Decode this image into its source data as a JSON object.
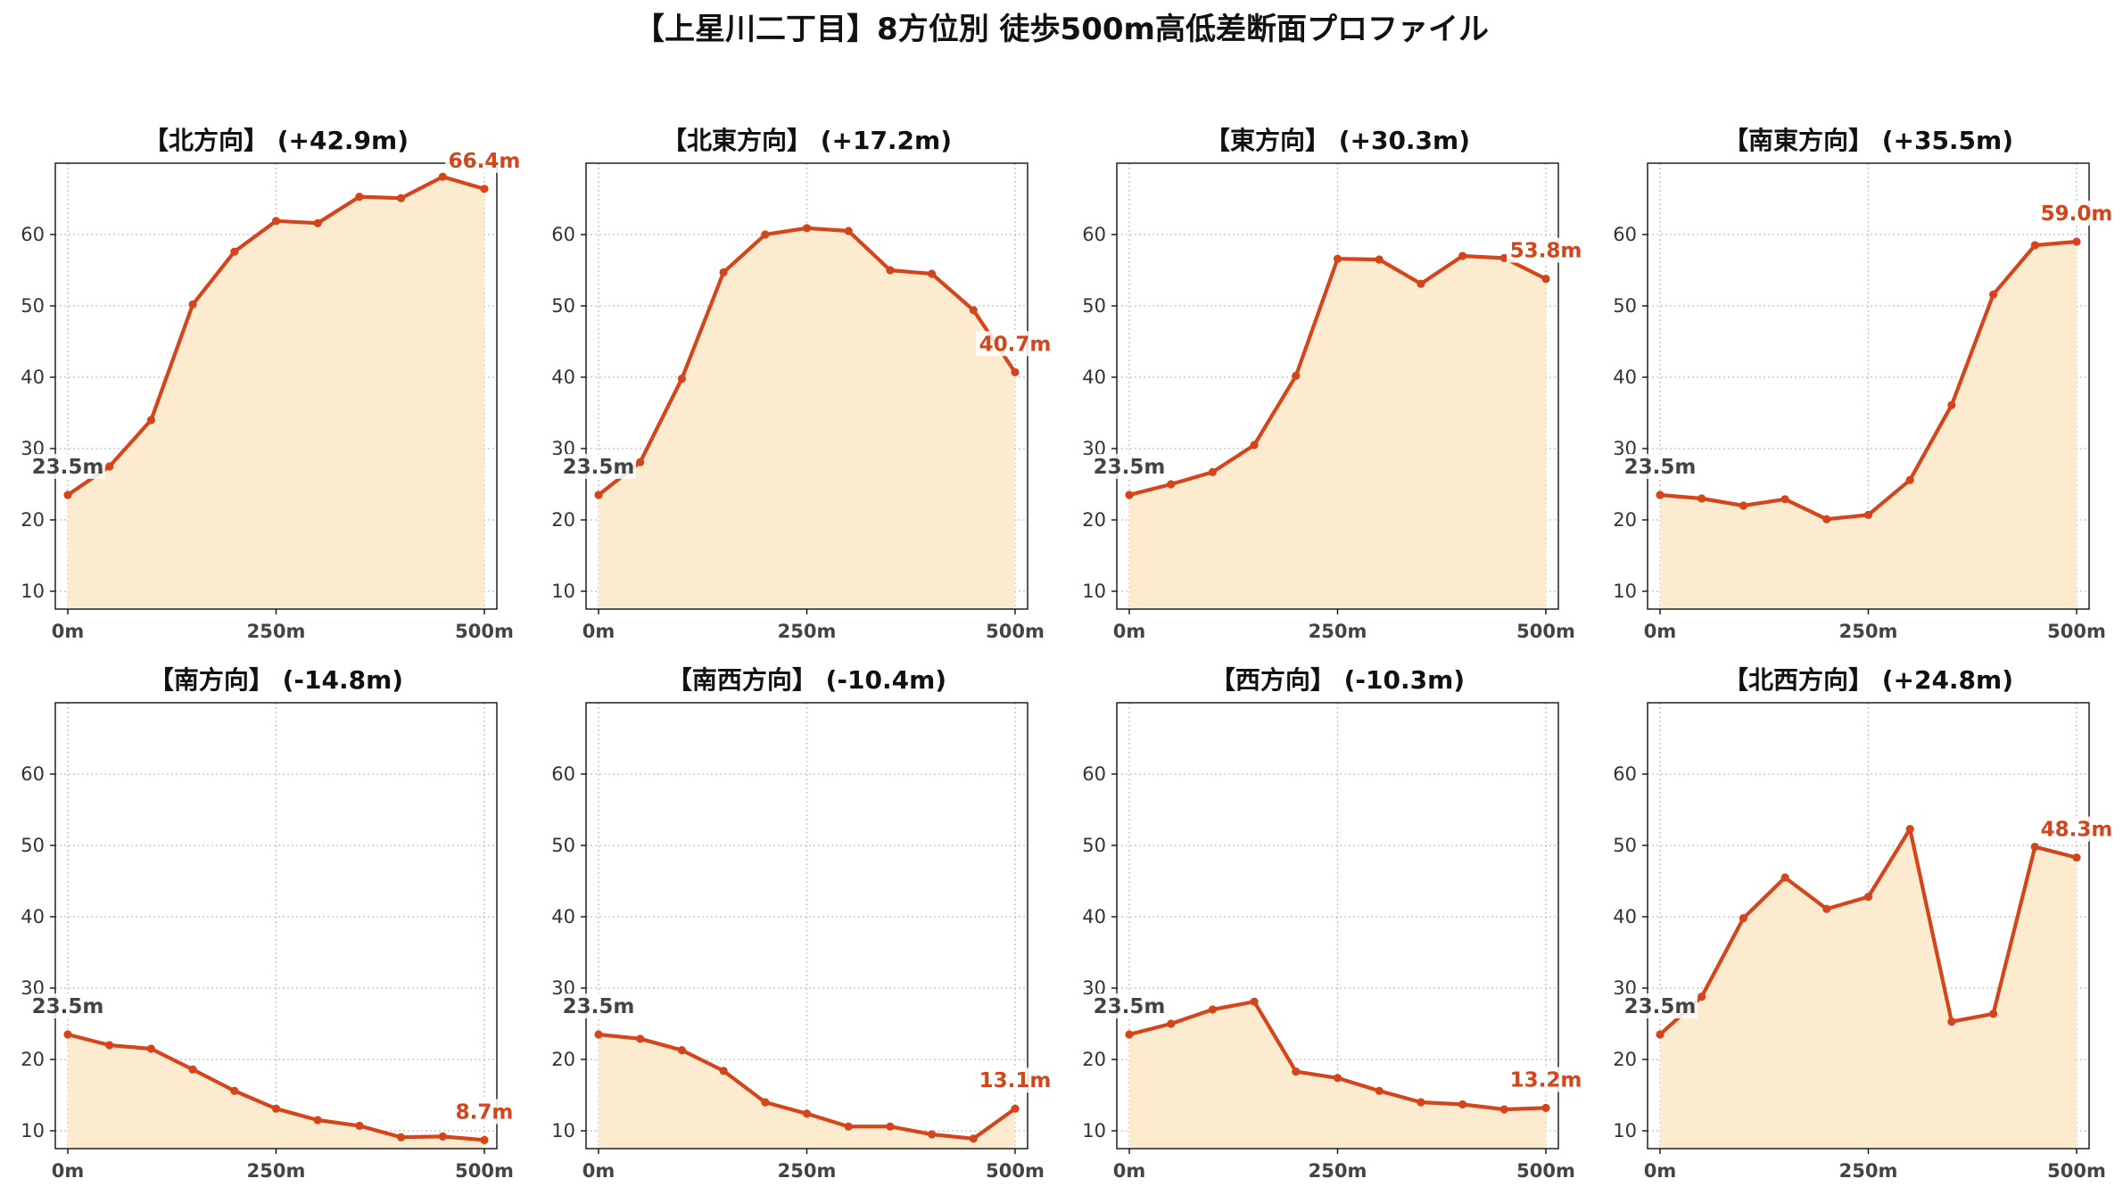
{
  "title": "【上星川二丁目】8方位別 徒歩500m高低差断面プロファイル",
  "colors": {
    "line": "#d4451b",
    "area": "#fdebd0",
    "start_label": "#444444",
    "end_label": "#d4451b"
  },
  "chart_data": {
    "type": "area",
    "shared_x": [
      0,
      50,
      100,
      150,
      200,
      250,
      300,
      350,
      400,
      450,
      500
    ],
    "x_ticks": [
      0,
      250,
      500
    ],
    "x_tick_labels": [
      "0m",
      "250m",
      "500m"
    ],
    "y_ticks": [
      10,
      20,
      30,
      40,
      50,
      60
    ],
    "xlim": [
      -15,
      515
    ],
    "ylim": [
      7.5,
      70
    ],
    "grid": true,
    "panels": [
      {
        "title": "【北方向】 (+42.9m)",
        "start_label": "23.5m",
        "end_label": "66.4m",
        "values": [
          23.5,
          27.5,
          34.0,
          50.2,
          57.6,
          61.9,
          61.6,
          65.3,
          65.1,
          68.1,
          66.4
        ]
      },
      {
        "title": "【北東方向】 (+17.2m)",
        "start_label": "23.5m",
        "end_label": "40.7m",
        "values": [
          23.5,
          28.1,
          39.8,
          54.7,
          60.0,
          60.9,
          60.5,
          55.0,
          54.5,
          49.4,
          40.7
        ]
      },
      {
        "title": "【東方向】 (+30.3m)",
        "start_label": "23.5m",
        "end_label": "53.8m",
        "values": [
          23.5,
          25.0,
          26.7,
          30.5,
          40.2,
          56.6,
          56.5,
          53.1,
          57.0,
          56.7,
          53.8
        ]
      },
      {
        "title": "【南東方向】 (+35.5m)",
        "start_label": "23.5m",
        "end_label": "59.0m",
        "values": [
          23.5,
          23.0,
          22.0,
          22.9,
          20.1,
          20.7,
          25.6,
          36.1,
          51.6,
          58.5,
          59.0
        ]
      },
      {
        "title": "【南方向】 (-14.8m)",
        "start_label": "23.5m",
        "end_label": "8.7m",
        "values": [
          23.5,
          22.0,
          21.5,
          18.6,
          15.6,
          13.1,
          11.5,
          10.7,
          9.1,
          9.2,
          8.7
        ]
      },
      {
        "title": "【南西方向】 (-10.4m)",
        "start_label": "23.5m",
        "end_label": "13.1m",
        "values": [
          23.5,
          22.9,
          21.3,
          18.4,
          14.0,
          12.4,
          10.6,
          10.6,
          9.5,
          8.9,
          13.1
        ]
      },
      {
        "title": "【西方向】 (-10.3m)",
        "start_label": "23.5m",
        "end_label": "13.2m",
        "values": [
          23.5,
          25.0,
          27.0,
          28.1,
          18.3,
          17.4,
          15.6,
          14.0,
          13.7,
          13.0,
          13.2
        ]
      },
      {
        "title": "【北西方向】 (+24.8m)",
        "start_label": "23.5m",
        "end_label": "48.3m",
        "values": [
          23.5,
          28.8,
          39.8,
          45.5,
          41.1,
          42.8,
          52.3,
          25.3,
          26.4,
          49.8,
          48.3
        ]
      }
    ]
  }
}
